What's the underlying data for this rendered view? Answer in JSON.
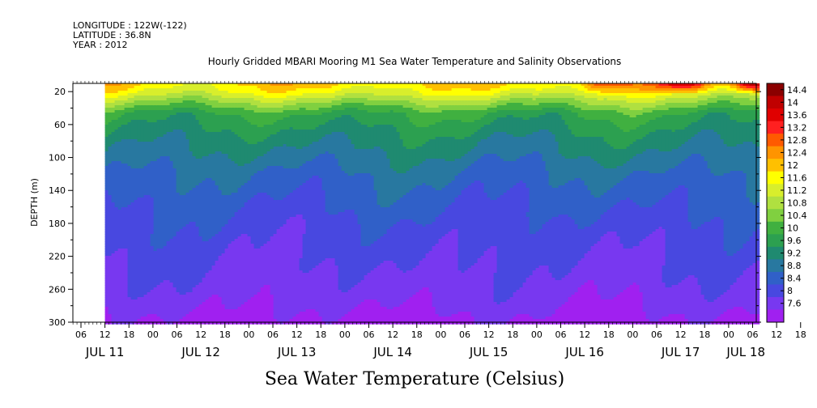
{
  "header": {
    "longitude": "LONGITUDE : 122W(-122)",
    "latitude": "LATITUDE : 36.8N",
    "year": "YEAR : 2012"
  },
  "chart_data": {
    "type": "heatmap",
    "title": "Hourly Gridded MBARI Mooring M1 Sea Water Temperature and Salinity Observations",
    "caption": "Sea Water Temperature (Celsius)",
    "ylabel": "DEPTH (m)",
    "y_axis": {
      "range": [
        10,
        300
      ],
      "inverted": true,
      "ticks": [
        20,
        60,
        100,
        140,
        180,
        220,
        260,
        300
      ]
    },
    "x_axis": {
      "hour_ticks": [
        "06",
        "12",
        "18",
        "00",
        "06",
        "12",
        "18",
        "00",
        "06",
        "12",
        "18",
        "00",
        "06",
        "12",
        "18",
        "00",
        "06",
        "12",
        "18",
        "00",
        "06",
        "12",
        "18",
        "00",
        "06",
        "12",
        "18",
        "00",
        "06",
        "12",
        "18",
        "00"
      ],
      "day_labels": [
        "JUL 11",
        "JUL 12",
        "JUL 13",
        "JUL 14",
        "JUL 15",
        "JUL 16",
        "JUL 17",
        "JUL 18"
      ],
      "data_start_hour": 12
    },
    "colorbar": {
      "labels": [
        "14.4",
        "14",
        "13.6",
        "13.2",
        "12.8",
        "12.4",
        "12",
        "11.6",
        "11.2",
        "10.8",
        "10.4",
        "10",
        "9.6",
        "9.2",
        "8.8",
        "8.4",
        "8",
        "7.6"
      ],
      "colors": [
        "#8b0000",
        "#c00000",
        "#e00000",
        "#ff2020",
        "#ff5a00",
        "#ff9400",
        "#ffc000",
        "#ffff00",
        "#d8ee2c",
        "#b0e040",
        "#80d040",
        "#40b040",
        "#2ca050",
        "#1f8a70",
        "#2878a0",
        "#3060c8",
        "#4848e0",
        "#7838f0",
        "#a020f0"
      ]
    },
    "profile": [
      {
        "depth": 10,
        "temp": 11.9
      },
      {
        "depth": 20,
        "temp": 11.5
      },
      {
        "depth": 30,
        "temp": 10.9
      },
      {
        "depth": 45,
        "temp": 10.1
      },
      {
        "depth": 60,
        "temp": 9.8
      },
      {
        "depth": 80,
        "temp": 9.5
      },
      {
        "depth": 100,
        "temp": 9.25
      },
      {
        "depth": 120,
        "temp": 9.0
      },
      {
        "depth": 140,
        "temp": 8.85
      },
      {
        "depth": 160,
        "temp": 8.7
      },
      {
        "depth": 180,
        "temp": 8.55
      },
      {
        "depth": 200,
        "temp": 8.45
      },
      {
        "depth": 220,
        "temp": 8.35
      },
      {
        "depth": 240,
        "temp": 8.25
      },
      {
        "depth": 260,
        "temp": 8.15
      },
      {
        "depth": 280,
        "temp": 8.0
      },
      {
        "depth": 300,
        "temp": 7.8
      }
    ]
  }
}
